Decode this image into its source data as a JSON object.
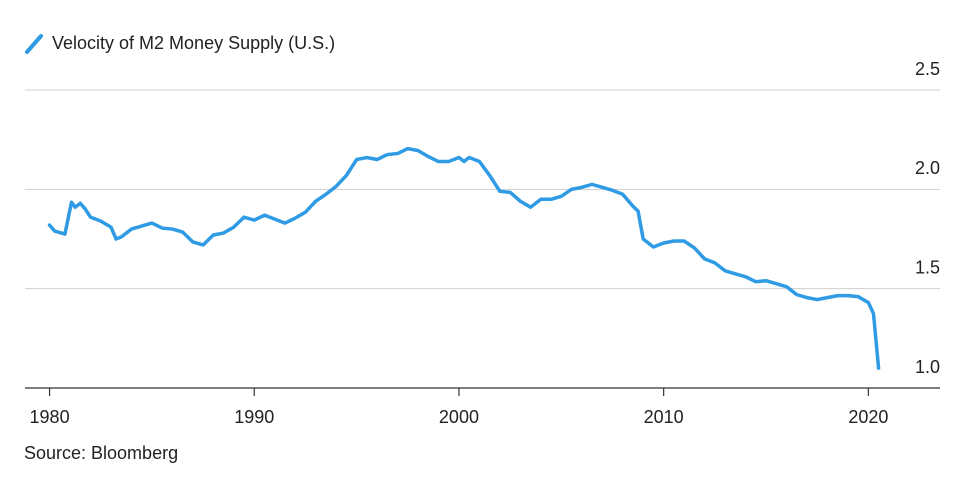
{
  "chart_data": {
    "type": "line",
    "source": "Source: Bloomberg",
    "x": [
      1980,
      1980.25,
      1980.75,
      1981.07,
      1981.25,
      1981.5,
      1981.75,
      1982,
      1982.5,
      1983,
      1983.25,
      1983.5,
      1984,
      1984.5,
      1985,
      1985.5,
      1986,
      1986.5,
      1987,
      1987.5,
      1988,
      1988.5,
      1989,
      1989.5,
      1990,
      1990.5,
      1991,
      1991.5,
      1992,
      1992.5,
      1993,
      1993.5,
      1994,
      1994.5,
      1995,
      1995.5,
      1996,
      1996.5,
      1997,
      1997.5,
      1998,
      1998.5,
      1999,
      1999.5,
      2000,
      2000.25,
      2000.5,
      2001,
      2001.5,
      2002,
      2002.5,
      2003,
      2003.5,
      2004,
      2004.5,
      2005,
      2005.5,
      2006,
      2006.5,
      2007,
      2007.5,
      2008,
      2008.5,
      2008.75,
      2009,
      2009.5,
      2010,
      2010.5,
      2011,
      2011.5,
      2012,
      2012.5,
      2013,
      2013.5,
      2014,
      2014.5,
      2015,
      2015.5,
      2016,
      2016.5,
      2017,
      2017.5,
      2018,
      2018.5,
      2019,
      2019.5,
      2020,
      2020.25,
      2020.5
    ],
    "series": [
      {
        "name": "Velocity of M2 Money Supply (U.S.)",
        "color": "#2e9be4",
        "values": [
          1.82,
          1.79,
          1.775,
          1.935,
          1.91,
          1.93,
          1.9,
          1.86,
          1.84,
          1.81,
          1.75,
          1.76,
          1.8,
          1.815,
          1.83,
          1.805,
          1.8,
          1.785,
          1.735,
          1.72,
          1.77,
          1.78,
          1.81,
          1.86,
          1.845,
          1.87,
          1.85,
          1.83,
          1.855,
          1.885,
          1.94,
          1.975,
          2.015,
          2.07,
          2.15,
          2.16,
          2.15,
          2.175,
          2.18,
          2.205,
          2.195,
          2.165,
          2.14,
          2.14,
          2.16,
          2.14,
          2.16,
          2.14,
          2.07,
          1.99,
          1.985,
          1.94,
          1.91,
          1.95,
          1.95,
          1.965,
          2.0,
          2.01,
          2.025,
          2.01,
          1.995,
          1.975,
          1.915,
          1.89,
          1.75,
          1.71,
          1.73,
          1.74,
          1.74,
          1.705,
          1.65,
          1.63,
          1.59,
          1.575,
          1.56,
          1.535,
          1.54,
          1.525,
          1.51,
          1.47,
          1.455,
          1.445,
          1.455,
          1.465,
          1.465,
          1.46,
          1.43,
          1.375,
          1.1
        ]
      }
    ],
    "xlim": [
      1978.8,
      2023.5
    ],
    "xticks": [
      1980,
      1990,
      2000,
      2010,
      2020
    ],
    "ylim": [
      1.0,
      2.5
    ],
    "yticks": [
      {
        "value": 1.0,
        "label": "1.0"
      },
      1.5,
      {
        "value": 2.0,
        "label": "2.0"
      },
      2.5
    ],
    "grid": true
  }
}
